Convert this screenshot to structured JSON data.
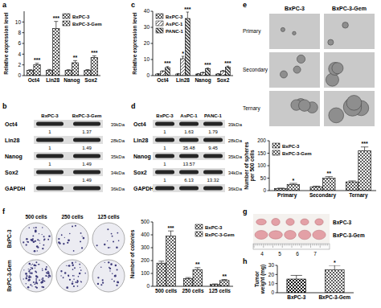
{
  "chart_data": [
    {
      "panel": "a",
      "type": "bar",
      "y_label": "Relative expression level",
      "categories": [
        "Oct4",
        "Lin28",
        "Nanog",
        "Sox2"
      ],
      "series": [
        {
          "name": "BxPC-3",
          "color": "#555555",
          "values": [
            1,
            1,
            1,
            1
          ],
          "errors": [
            0.1,
            0.15,
            0.1,
            0.12
          ]
        },
        {
          "name": "BxPC-3-Gem",
          "color": "#111111",
          "values": [
            2.0,
            8.8,
            2.4,
            3.4
          ],
          "errors": [
            0.3,
            1.3,
            0.4,
            0.3
          ],
          "significance": [
            "***",
            "***",
            "**",
            "***"
          ]
        }
      ],
      "ylim": [
        0,
        12
      ],
      "yticks": [
        0,
        2,
        4,
        6,
        8,
        10
      ],
      "legend": "upper right"
    },
    {
      "panel": "c",
      "type": "bar",
      "y_label": "Relative expression level",
      "categories": [
        "Oct4",
        "Lin28",
        "Nanog",
        "Sox2"
      ],
      "series": [
        {
          "name": "BxPC-3",
          "color": "#555555",
          "values": [
            1,
            1,
            1,
            1
          ],
          "errors": [
            0.2,
            0.3,
            0.2,
            0.2
          ]
        },
        {
          "name": "AsPC-1",
          "color": "#333333",
          "values": [
            2.6,
            10.5,
            1.8,
            2.8
          ],
          "errors": [
            0.4,
            1.5,
            0.3,
            0.4
          ],
          "significance": [
            null,
            "*",
            null,
            null
          ]
        },
        {
          "name": "PANC-1",
          "color": "#222222",
          "values": [
            5.0,
            35.5,
            4.2,
            5.3
          ],
          "errors": [
            0.6,
            4.0,
            0.5,
            0.6
          ],
          "significance": [
            "***",
            "***",
            "***",
            "***"
          ]
        }
      ],
      "ylim": [
        0,
        40
      ],
      "yticks": [
        0,
        10,
        20,
        30,
        40
      ],
      "legend": "upper left"
    },
    {
      "type": "bar",
      "y_label": "Number of spheres per 500 cells",
      "categories": [
        "Primary",
        "Secondary",
        "Ternary"
      ],
      "series": [
        {
          "name": "BxPC-3",
          "color": "#555555",
          "values": [
            8,
            15,
            35
          ],
          "errors": [
            2,
            3,
            4
          ]
        },
        {
          "name": "BxPC-3-Gem",
          "color": "#111111",
          "values": [
            25,
            50,
            160
          ],
          "errors": [
            4,
            6,
            15
          ],
          "significance": [
            "*",
            "**",
            "***"
          ]
        }
      ],
      "ylim": [
        0,
        200
      ],
      "yticks": [
        0,
        50,
        100,
        150,
        200
      ],
      "legend": "upper left"
    },
    {
      "panel": "f",
      "type": "bar",
      "y_label": "Number of colonies",
      "categories": [
        "500 cells",
        "250 cells",
        "125 cells"
      ],
      "series": [
        {
          "name": "BxPC-3",
          "color": "#555555",
          "values": [
            180,
            60,
            15
          ],
          "errors": [
            15,
            8,
            3
          ]
        },
        {
          "name": "BxPC-3-Gem",
          "color": "#111111",
          "values": [
            390,
            130,
            45
          ],
          "errors": [
            40,
            15,
            8
          ],
          "significance": [
            "***",
            "**",
            "**"
          ]
        }
      ],
      "ylim": [
        0,
        500
      ],
      "yticks": [
        0,
        100,
        200,
        300,
        400,
        500
      ],
      "legend": "upper right"
    },
    {
      "panel": "h",
      "type": "bar",
      "y_label": "Tumor weight (mg)",
      "categories": [
        "BxPC-3",
        "BxPC-3-Gem"
      ],
      "values": [
        15,
        25
      ],
      "errors": [
        4,
        5
      ],
      "significance": [
        null,
        "*"
      ],
      "color": "#111111",
      "ylim": [
        0,
        30
      ],
      "yticks": [
        0,
        10,
        20,
        30
      ]
    }
  ],
  "blots": [
    {
      "panel": "b",
      "columns": [
        "BxPC-3",
        "BxPC-3-Gem"
      ],
      "rows": [
        {
          "protein": "Oct4",
          "size": "39kDa",
          "values": [
            1,
            1.37
          ]
        },
        {
          "protein": "Lin28",
          "size": "28kDa",
          "values": [
            1,
            1.49
          ]
        },
        {
          "protein": "Nanog",
          "size": "35kDa",
          "values": [
            1,
            1.49
          ]
        },
        {
          "protein": "Sox2",
          "size": "34kDa",
          "values": [
            1,
            1.49
          ]
        },
        {
          "protein": "GAPDH",
          "size": "36kDa"
        }
      ]
    },
    {
      "panel": "d",
      "columns": [
        "BxPC-3",
        "AsPC-1",
        "PANC-1"
      ],
      "rows": [
        {
          "protein": "Oct4",
          "size": "39kDa",
          "values": [
            1,
            1.63,
            1.79
          ]
        },
        {
          "protein": "Lin28",
          "size": "28kDa",
          "values": [
            1,
            35.48,
            9.45
          ]
        },
        {
          "protein": "Nanog",
          "size": "35kDa",
          "values": [
            1,
            13.57,
            null
          ]
        },
        {
          "protein": "Sox2",
          "size": "34kDa",
          "values": [
            1,
            6.13,
            13.32
          ]
        },
        {
          "protein": "GAPDH",
          "size": "36kDa"
        }
      ]
    }
  ],
  "images": [
    {
      "panel": "e",
      "columns": [
        "BxPC-3",
        "BxPC-3-Gem"
      ],
      "rows": [
        "Primary",
        "Secondary",
        "Ternary"
      ]
    },
    {
      "columns": [
        "500 cells",
        "250 cells",
        "125 cells"
      ],
      "rows": [
        "BxPC-3",
        "BxPC-3-Gem"
      ]
    },
    {
      "panel": "g",
      "rows": [
        "BxPC-3",
        "BxPC-3-Gem"
      ],
      "scale": [
        4,
        5,
        6,
        7
      ]
    }
  ]
}
